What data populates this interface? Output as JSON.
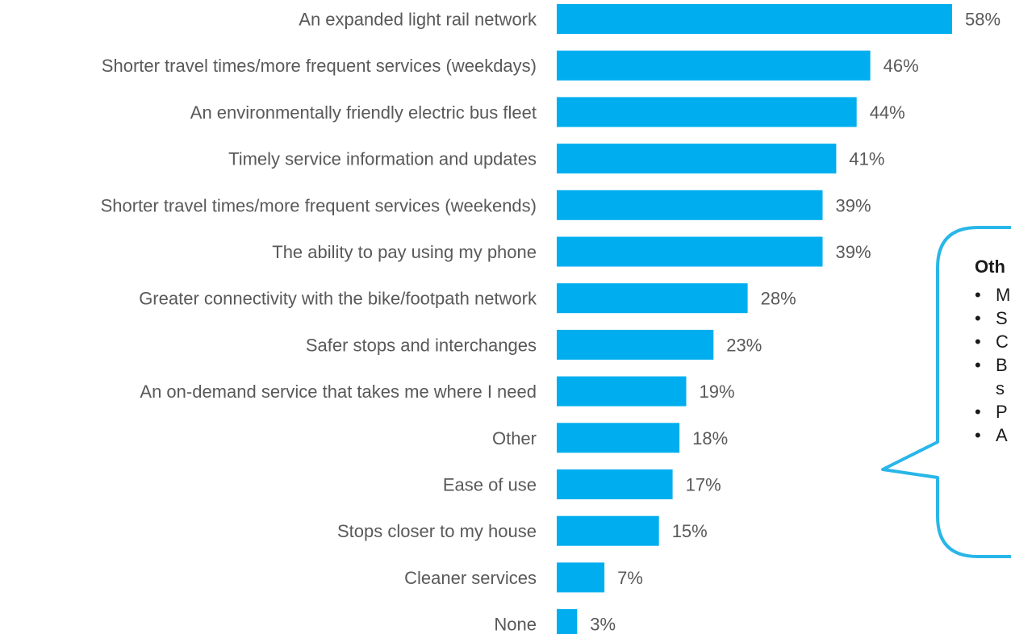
{
  "colors": {
    "bar": "#00AEEF",
    "label_text": "#595959",
    "callout_border": "#29B6E8"
  },
  "chart_data": {
    "type": "bar",
    "orientation": "horizontal",
    "categories": [
      "An expanded light rail network",
      "Shorter travel times/more frequent services (weekdays)",
      "An environmentally friendly electric bus fleet",
      "Timely service information and updates",
      "Shorter travel times/more frequent services (weekends)",
      "The ability to pay using my phone",
      "Greater connectivity with the bike/footpath network",
      "Safer stops and interchanges",
      "An on-demand service that takes me where I need",
      "Other",
      "Ease of use",
      "Stops closer to my house",
      "Cleaner services",
      "None"
    ],
    "values": [
      58,
      46,
      44,
      41,
      39,
      39,
      28,
      23,
      19,
      18,
      17,
      15,
      7,
      3
    ],
    "value_labels": [
      "58%",
      "46%",
      "44%",
      "41%",
      "39%",
      "39%",
      "28%",
      "23%",
      "19%",
      "18%",
      "17%",
      "15%",
      "7%",
      "3%"
    ],
    "unit": "%",
    "title": "",
    "xlabel": "",
    "ylabel": "",
    "xlim": [
      0,
      58
    ],
    "grid": false,
    "legend": "none"
  },
  "callout": {
    "title": "Oth",
    "items": [
      "M",
      "S",
      "C",
      "B",
      "s",
      "P",
      "A"
    ]
  }
}
